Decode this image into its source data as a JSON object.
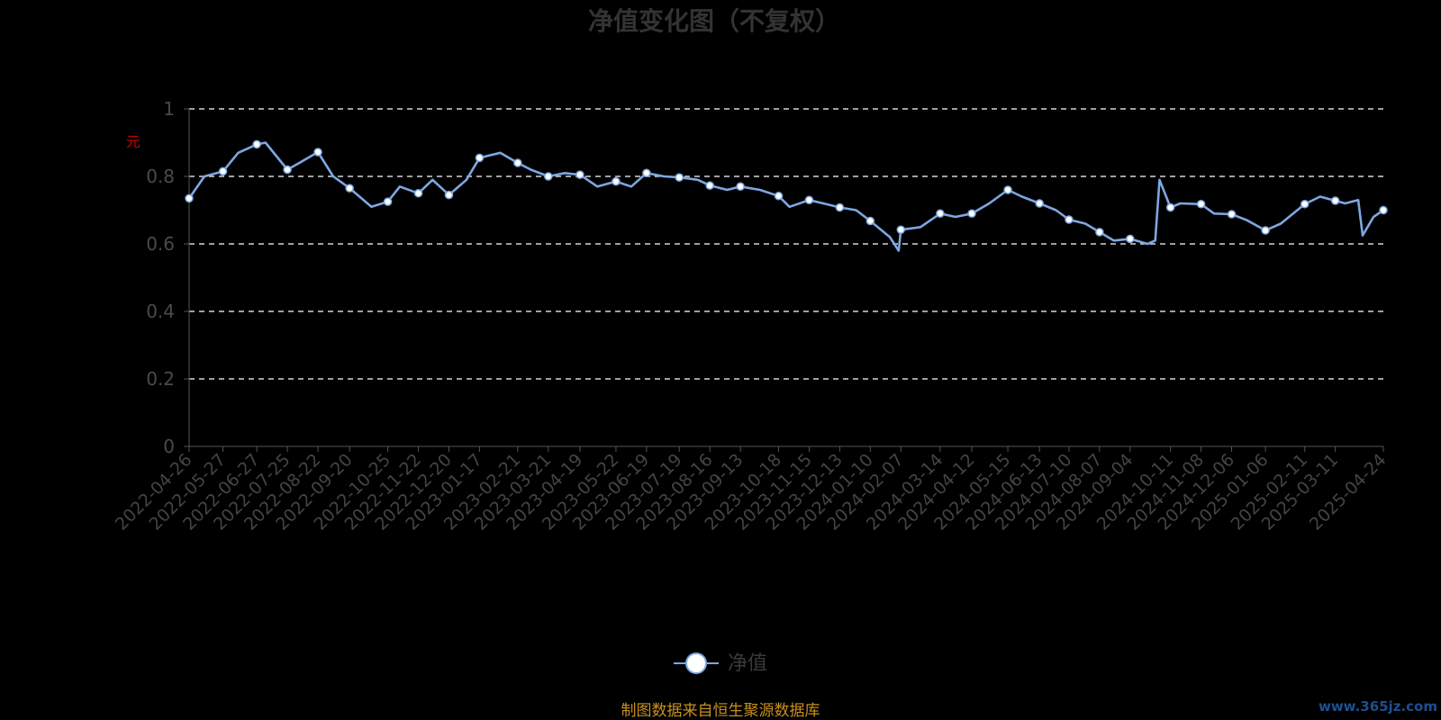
{
  "chart_data": {
    "type": "line",
    "title": "净值变化图（不复权）",
    "ylabel": "元",
    "ylim": [
      0,
      1
    ],
    "yticks": [
      "0",
      "0.2",
      "0.4",
      "0.6",
      "0.8",
      "1"
    ],
    "grid": true,
    "legend_position": "bottom-center",
    "x_tick_labels": [
      "2022-04-26",
      "2022-05-27",
      "2022-06-27",
      "2022-07-25",
      "2022-08-22",
      "2022-09-20",
      "2022-10-25",
      "2022-11-22",
      "2022-12-20",
      "2023-01-17",
      "2023-02-21",
      "2023-03-21",
      "2023-04-19",
      "2023-05-22",
      "2023-06-19",
      "2023-07-19",
      "2023-08-16",
      "2023-09-13",
      "2023-10-18",
      "2023-11-15",
      "2023-12-13",
      "2024-01-10",
      "2024-02-07",
      "2024-03-14",
      "2024-04-12",
      "2024-05-15",
      "2024-06-13",
      "2024-07-10",
      "2024-08-07",
      "2024-09-04",
      "2024-10-11",
      "2024-11-08",
      "2024-12-06",
      "2025-01-06",
      "2025-02-11",
      "2025-03-11",
      "2025-04-24"
    ],
    "series": [
      {
        "name": "净值",
        "color": "#7da7e0",
        "x": [
          "2022-04-26",
          "2022-05-27",
          "2022-06-27",
          "2022-07-25",
          "2022-08-22",
          "2022-09-20",
          "2022-10-25",
          "2022-11-22",
          "2022-12-20",
          "2023-01-17",
          "2023-02-21",
          "2023-03-21",
          "2023-04-19",
          "2023-05-22",
          "2023-06-19",
          "2023-07-19",
          "2023-08-16",
          "2023-09-13",
          "2023-10-18",
          "2023-11-15",
          "2023-12-13",
          "2024-01-10",
          "2024-02-07",
          "2024-03-14",
          "2024-04-12",
          "2024-05-15",
          "2024-06-13",
          "2024-07-10",
          "2024-08-07",
          "2024-09-04",
          "2024-10-11",
          "2024-11-08",
          "2024-12-06",
          "2025-01-06",
          "2025-02-11",
          "2025-03-11",
          "2025-04-24"
        ],
        "values": [
          0.735,
          0.815,
          0.895,
          0.82,
          0.872,
          0.765,
          0.725,
          0.75,
          0.745,
          0.855,
          0.84,
          0.8,
          0.805,
          0.785,
          0.81,
          0.797,
          0.773,
          0.77,
          0.742,
          0.73,
          0.708,
          0.668,
          0.642,
          0.69,
          0.69,
          0.76,
          0.72,
          0.672,
          0.635,
          0.615,
          0.708,
          0.718,
          0.688,
          0.64,
          0.718,
          0.728,
          0.7
        ],
        "extra_points": {
          "2022-05-10": 0.8,
          "2022-06-10": 0.87,
          "2022-07-05": 0.9,
          "2022-08-05": 0.84,
          "2022-09-05": 0.8,
          "2022-10-10": 0.71,
          "2022-11-05": 0.77,
          "2022-12-05": 0.79,
          "2023-01-05": 0.79,
          "2023-02-05": 0.87,
          "2023-03-05": 0.82,
          "2023-04-05": 0.81,
          "2023-05-05": 0.77,
          "2023-06-05": 0.77,
          "2023-07-05": 0.8,
          "2023-08-05": 0.79,
          "2023-09-01": 0.76,
          "2023-10-01": 0.76,
          "2023-10-28": 0.71,
          "2023-11-28": 0.72,
          "2023-12-28": 0.7,
          "2024-01-28": 0.62,
          "2024-02-05": 0.58,
          "2024-02-25": 0.65,
          "2024-03-28": 0.68,
          "2024-04-28": 0.72,
          "2024-05-28": 0.74,
          "2024-06-28": 0.7,
          "2024-07-25": 0.66,
          "2024-08-20": 0.61,
          "2024-09-20": 0.6,
          "2024-09-27": 0.61,
          "2024-10-01": 0.79,
          "2024-10-20": 0.72,
          "2024-11-20": 0.69,
          "2024-12-20": 0.67,
          "2025-01-20": 0.66,
          "2025-02-25": 0.74,
          "2025-03-20": 0.72,
          "2025-04-01": 0.73,
          "2025-04-05": 0.625,
          "2025-04-15": 0.68
        }
      }
    ]
  },
  "footer": {
    "source": "制图数据来自恒生聚源数据库",
    "watermark": "www.365jz.com"
  }
}
